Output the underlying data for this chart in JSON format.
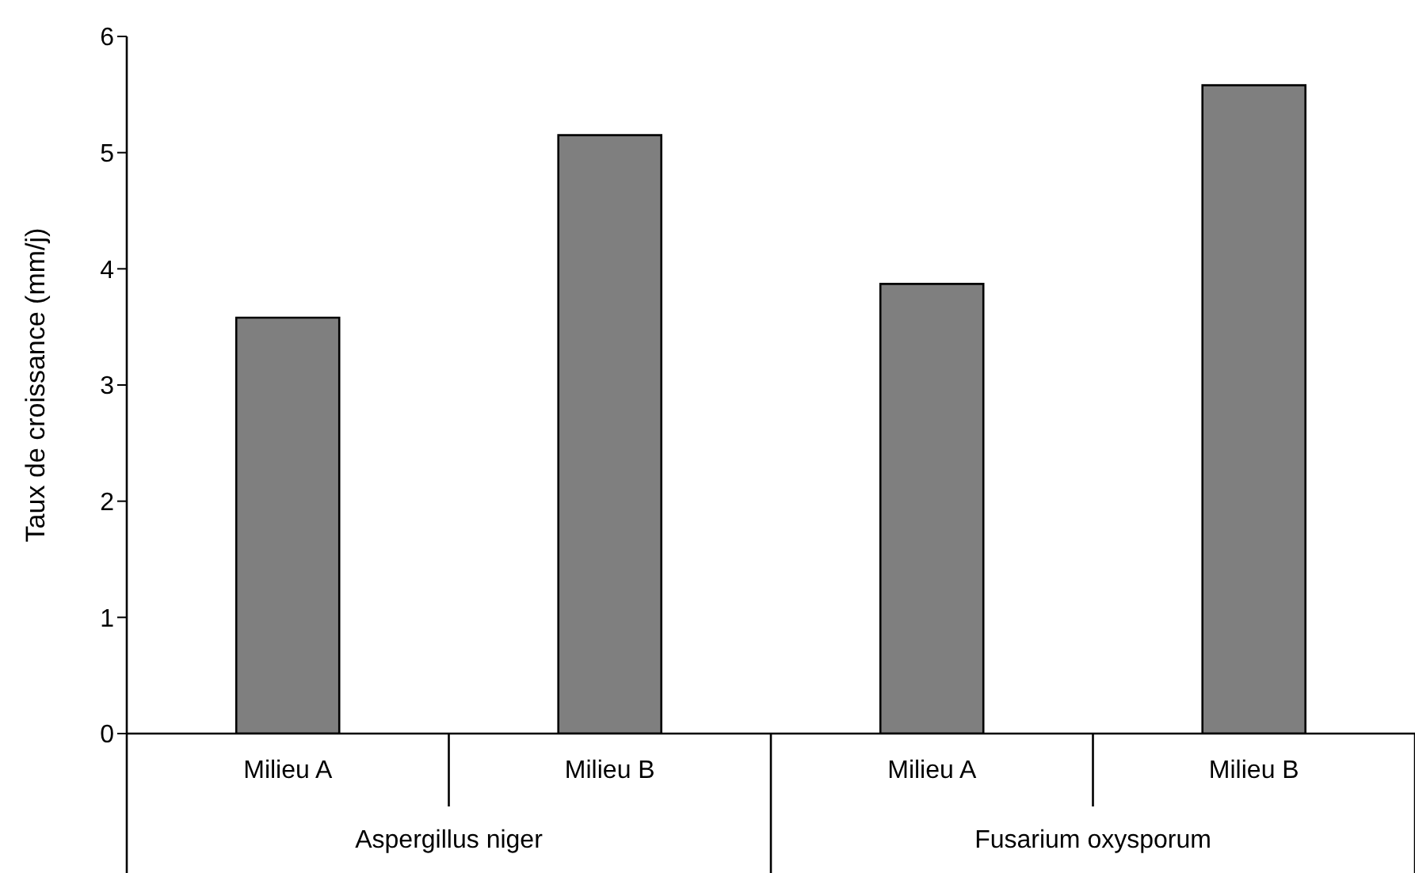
{
  "chart_data": {
    "type": "bar",
    "ylabel": "Taux de croissance (mm/j)",
    "categories": [
      "Milieu A",
      "Milieu B",
      "Milieu A",
      "Milieu B"
    ],
    "values": [
      3.58,
      5.15,
      3.87,
      5.58
    ],
    "color": "#7f7f7f",
    "ylim": [
      0,
      6
    ],
    "yticks": [
      0,
      1,
      2,
      3,
      4,
      5,
      6
    ],
    "annotations": [
      "Aspergillus niger",
      "Fusarium oxysporum"
    ]
  }
}
